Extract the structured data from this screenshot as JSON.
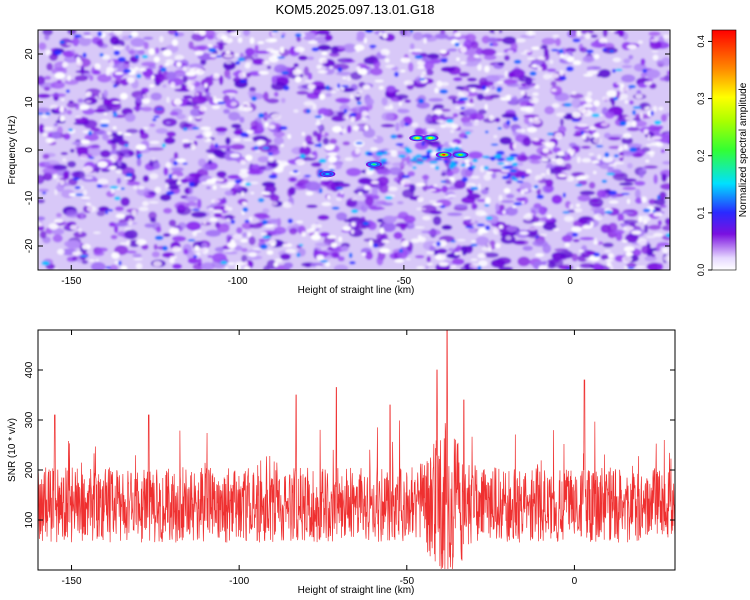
{
  "title": "KOM5.2025.097.13.01.G18",
  "colors": {
    "accent": "#ef3030",
    "spectrogram_low": "#ffffff",
    "spectrogram_mid": "#7a10e0",
    "spectrogram_high": "#ff0000"
  },
  "chart_data": [
    {
      "type": "heatmap",
      "xlabel": "Height of straight line (km)",
      "ylabel": "Frequency (Hz)",
      "xlim": [
        -160,
        30
      ],
      "ylim": [
        -25,
        25
      ],
      "x_ticks": [
        -150,
        -100,
        -50,
        0
      ],
      "y_ticks": [
        -20,
        -10,
        0,
        10,
        20
      ],
      "colorbar": {
        "label": "Normalized spectral amplitude",
        "range": [
          0.0,
          0.42
        ],
        "ticks": [
          0.0,
          0.1,
          0.2,
          0.3,
          0.4
        ],
        "tick_labels": [
          "0.0",
          "0.1",
          "0.2",
          "0.3",
          "0.4"
        ]
      },
      "grid": false,
      "features": [
        {
          "x": -46,
          "y": 2.5,
          "value": 0.3
        },
        {
          "x": -42,
          "y": 2.5,
          "value": 0.3
        },
        {
          "x": -38,
          "y": -1,
          "value": 0.42
        },
        {
          "x": -33,
          "y": -1,
          "value": 0.25
        },
        {
          "x": -59,
          "y": -3,
          "value": 0.2
        },
        {
          "x": -73,
          "y": -5,
          "value": 0.15
        }
      ]
    },
    {
      "type": "line",
      "xlabel": "Height of straight line (km)",
      "ylabel": "SNR (10 * v/v)",
      "xlim": [
        -160,
        30
      ],
      "ylim": [
        0,
        480
      ],
      "x_ticks": [
        -150,
        -100,
        -50,
        0
      ],
      "y_ticks": [
        100,
        200,
        300,
        400
      ],
      "grid": false,
      "series": [
        {
          "color": "#ef3030",
          "baseline": 130,
          "peak_x": -38,
          "peak_value": 480,
          "notable_spikes": [
            {
              "x": -155,
              "y": 310
            },
            {
              "x": -127,
              "y": 310
            },
            {
              "x": -83,
              "y": 350
            },
            {
              "x": -71,
              "y": 365
            },
            {
              "x": -55,
              "y": 330
            },
            {
              "x": -41,
              "y": 400
            },
            {
              "x": -38,
              "y": 480
            },
            {
              "x": -33,
              "y": 340
            },
            {
              "x": 3,
              "y": 380
            }
          ]
        }
      ]
    }
  ]
}
